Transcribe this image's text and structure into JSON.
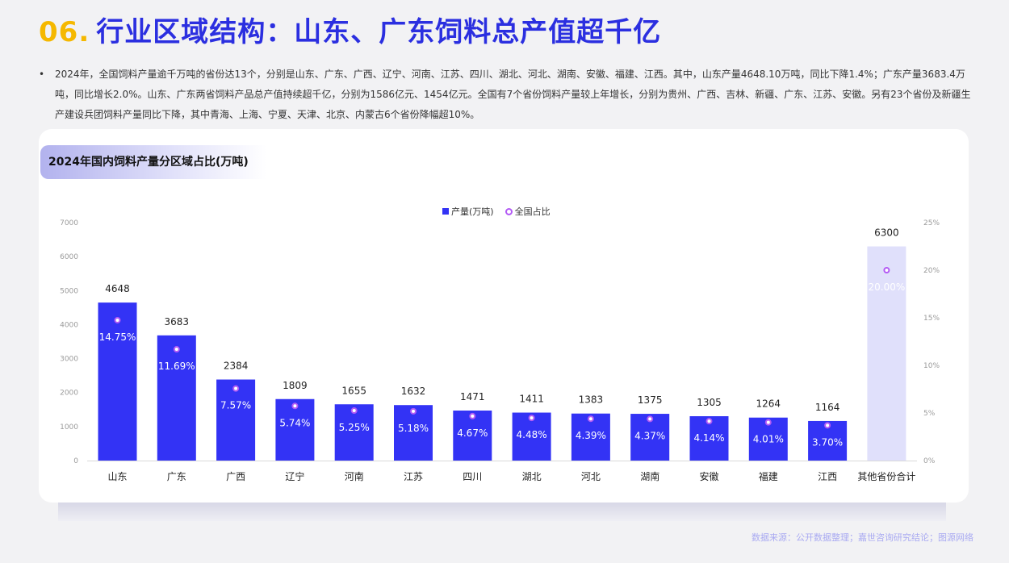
{
  "header": {
    "number": "06.",
    "title": "行业区域结构：山东、广东饲料总产值超千亿"
  },
  "summary": {
    "bullet": "•",
    "text": "2024年，全国饲料产量逾千万吨的省份达13个，分别是山东、广东、广西、辽宁、河南、江苏、四川、湖北、河北、湖南、安徽、福建、江西。其中，山东产量4648.10万吨，同比下降1.4%；广东产量3683.4万吨，同比增长2.0%。山东、广东两省饲料产品总产值持续超千亿，分别为1586亿元、1454亿元。全国有7个省份饲料产量较上年增长，分别为贵州、广西、吉林、新疆、广东、江苏、安徽。另有23个省份及新疆生产建设兵团饲料产量同比下降，其中青海、上海、宁夏、天津、北京、内蒙古6个省份降幅超10%。"
  },
  "chart_tag": "2024年国内饲料产量分区域占比(万吨)",
  "source": "数据来源：公开数据整理；嘉世咨询研究结论；图源网络",
  "colors": {
    "bar": "#3333f5",
    "bar_highlight": "#e0e0fb",
    "marker": "#b35bf5",
    "title": "#2b2fe0",
    "number": "#f5b800"
  },
  "chart_data": {
    "type": "bar",
    "title": "2024年国内饲料产量分区域占比(万吨)",
    "categories": [
      "山东",
      "广东",
      "广西",
      "辽宁",
      "河南",
      "江苏",
      "四川",
      "湖北",
      "河北",
      "湖南",
      "安徽",
      "福建",
      "江西",
      "其他省份合计"
    ],
    "series": [
      {
        "name": "产量(万吨)",
        "type": "bar",
        "axis": "left",
        "values": [
          4648,
          3683,
          2384,
          1809,
          1655,
          1632,
          1471,
          1411,
          1383,
          1375,
          1305,
          1264,
          1164,
          6300
        ]
      },
      {
        "name": "全国占比",
        "type": "scatter",
        "axis": "right",
        "values": [
          14.75,
          11.69,
          7.57,
          5.74,
          5.25,
          5.18,
          4.67,
          4.48,
          4.39,
          4.37,
          4.14,
          4.01,
          3.7,
          20.0
        ],
        "labels": [
          "14.75%",
          "11.69%",
          "7.57%",
          "5.74%",
          "5.25%",
          "5.18%",
          "4.67%",
          "4.48%",
          "4.39%",
          "4.37%",
          "4.14%",
          "4.01%",
          "3.70%",
          "20.00%"
        ]
      }
    ],
    "bar_labels": [
      "4648",
      "3683",
      "2384",
      "1809",
      "1655",
      "1632",
      "1471",
      "1411",
      "1383",
      "1375",
      "1305",
      "1264",
      "1164",
      "6300"
    ],
    "highlight_index": 13,
    "ylim_left": [
      0,
      7000
    ],
    "yticks_left": [
      "0",
      "1000",
      "2000",
      "3000",
      "4000",
      "5000",
      "6000",
      "7000"
    ],
    "ylim_right": [
      0,
      25
    ],
    "yticks_right": [
      "0%",
      "5%",
      "10%",
      "15%",
      "20%",
      "25%"
    ],
    "legend": "top-center",
    "grid": false
  }
}
